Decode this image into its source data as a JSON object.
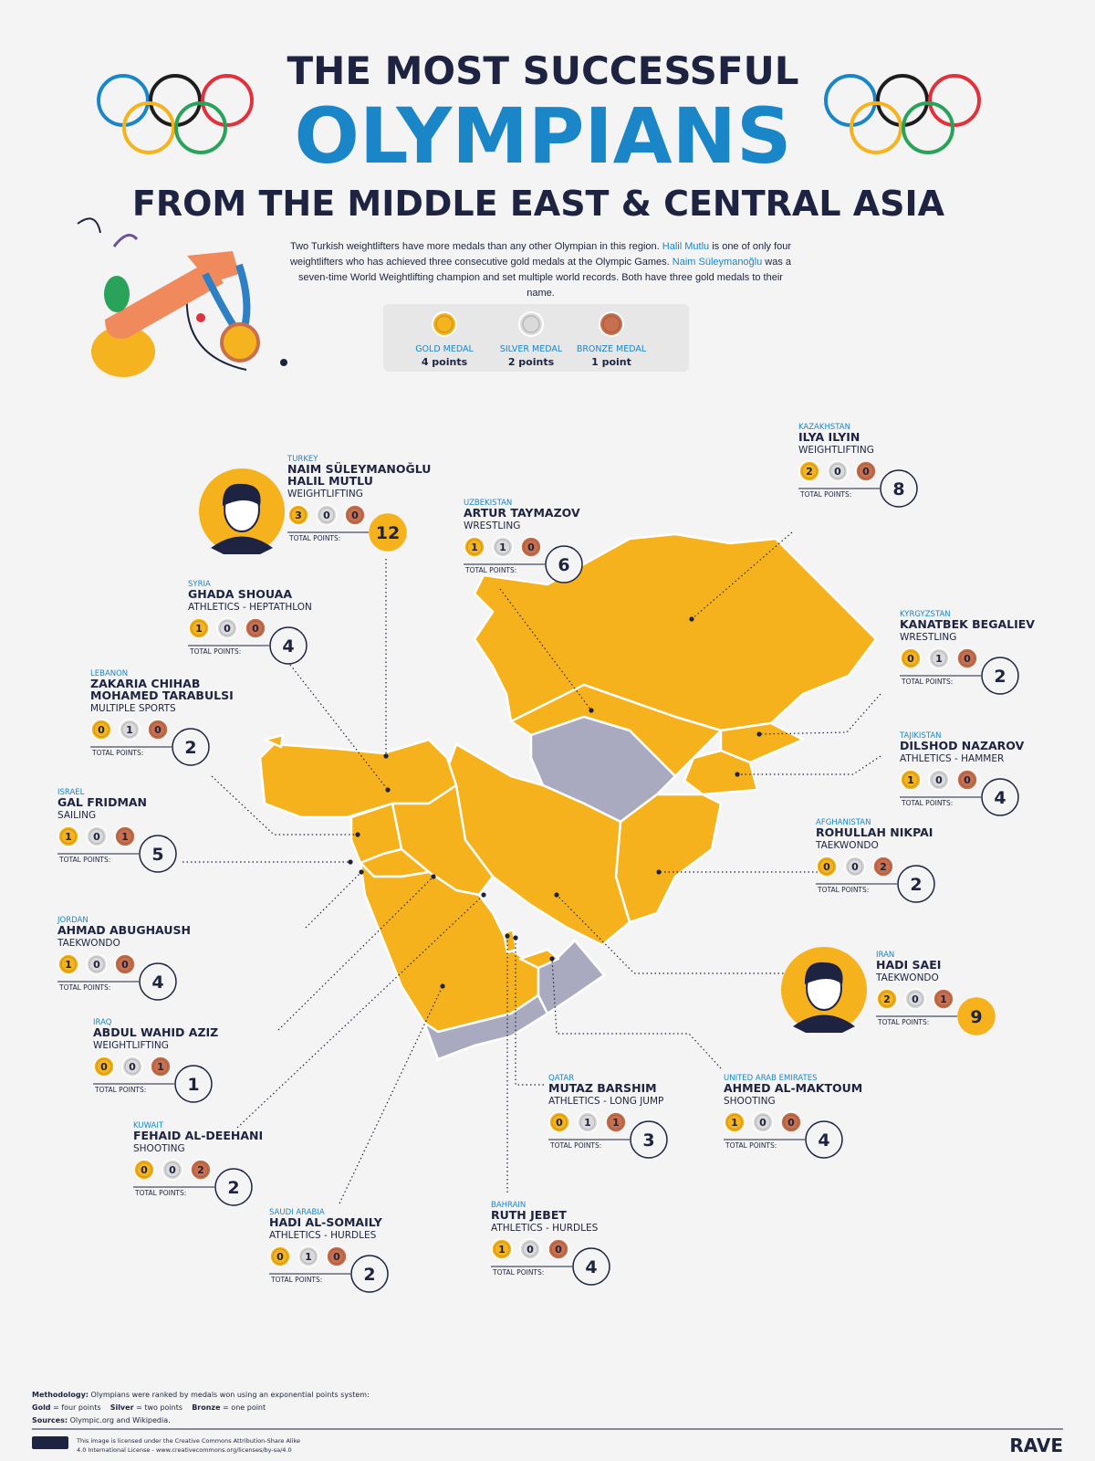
{
  "header": {
    "title_line1": "THE MOST SUCCESSFUL",
    "title_line2": "OLYMPIANS",
    "title_line3": "FROM THE MIDDLE EAST & CENTRAL ASIA"
  },
  "intro": [
    {
      "text": "Two Turkish weightlifters have more medals than any other Olympian in this region. ",
      "highlight": false
    },
    {
      "text": "Halil Mutlu",
      "highlight": true
    },
    {
      "text": " is one of only four weightlifters who has achieved three consecutive gold medals at the Olympic Games. ",
      "highlight": false
    },
    {
      "text": "Naim Süleymanoğlu",
      "highlight": true
    },
    {
      "text": " was a seven-time World Weightlifting champion and set multiple world records. Both have three gold medals to their name.",
      "highlight": false
    }
  ],
  "legend": [
    {
      "label": "GOLD MEDAL",
      "points": "4 points",
      "color": "#f4b31f"
    },
    {
      "label": "SILVER MEDAL",
      "points": "2 points",
      "color": "#dadada"
    },
    {
      "label": "BRONZE MEDAL",
      "points": "1 point",
      "color": "#c8704e"
    }
  ],
  "total_points_label": "TOTAL POINTS:",
  "olympians": [
    {
      "country": "TURKEY",
      "names": [
        "NAIM SÜLEYMANOĞLU",
        "HALIL MUTLU"
      ],
      "sport": "WEIGHTLIFTING",
      "medals": [
        3,
        0,
        0
      ],
      "total": 12,
      "featured": true
    },
    {
      "country": "UZBEKISTAN",
      "names": [
        "ARTUR TAYMAZOV"
      ],
      "sport": "WRESTLING",
      "medals": [
        1,
        1,
        0
      ],
      "total": 6,
      "featured": false
    },
    {
      "country": "KAZAKHSTAN",
      "names": [
        "ILYA ILYIN"
      ],
      "sport": "WEIGHTLIFTING",
      "medals": [
        2,
        0,
        0
      ],
      "total": 8,
      "featured": false
    },
    {
      "country": "SYRIA",
      "names": [
        "GHADA SHOUAA"
      ],
      "sport": "ATHLETICS - HEPTATHLON",
      "medals": [
        1,
        0,
        0
      ],
      "total": 4,
      "featured": false
    },
    {
      "country": "KYRGYZSTAN",
      "names": [
        "KANATBEK BEGALIEV"
      ],
      "sport": "WRESTLING",
      "medals": [
        0,
        1,
        0
      ],
      "total": 2,
      "featured": false
    },
    {
      "country": "LEBANON",
      "names": [
        "ZAKARIA CHIHAB",
        "MOHAMED TARABULSI"
      ],
      "sport": "MULTIPLE SPORTS",
      "medals": [
        0,
        1,
        0
      ],
      "total": 2,
      "featured": false
    },
    {
      "country": "TAJIKISTAN",
      "names": [
        "DILSHOD NAZAROV"
      ],
      "sport": "ATHLETICS - HAMMER",
      "medals": [
        1,
        0,
        0
      ],
      "total": 4,
      "featured": false
    },
    {
      "country": "ISRAEL",
      "names": [
        "GAL FRIDMAN"
      ],
      "sport": "SAILING",
      "medals": [
        1,
        0,
        1
      ],
      "total": 5,
      "featured": false
    },
    {
      "country": "AFGHANISTAN",
      "names": [
        "ROHULLAH NIKPAI"
      ],
      "sport": "TAEKWONDO",
      "medals": [
        0,
        0,
        2
      ],
      "total": 2,
      "featured": false
    },
    {
      "country": "JORDAN",
      "names": [
        "AHMAD ABUGHAUSH"
      ],
      "sport": "TAEKWONDO",
      "medals": [
        1,
        0,
        0
      ],
      "total": 4,
      "featured": false
    },
    {
      "country": "IRAN",
      "names": [
        "HADI SAEI"
      ],
      "sport": "TAEKWONDO",
      "medals": [
        2,
        0,
        1
      ],
      "total": 9,
      "featured": true
    },
    {
      "country": "IRAQ",
      "names": [
        "ABDUL WAHID AZIZ"
      ],
      "sport": "WEIGHTLIFTING",
      "medals": [
        0,
        0,
        1
      ],
      "total": 1,
      "featured": false
    },
    {
      "country": "KUWAIT",
      "names": [
        "FEHAID AL-DEEHANI"
      ],
      "sport": "SHOOTING",
      "medals": [
        0,
        0,
        2
      ],
      "total": 2,
      "featured": false
    },
    {
      "country": "QATAR",
      "names": [
        "MUTAZ BARSHIM"
      ],
      "sport": "ATHLETICS - LONG JUMP",
      "medals": [
        0,
        1,
        1
      ],
      "total": 3,
      "featured": false
    },
    {
      "country": "UNITED ARAB EMIRATES",
      "names": [
        "AHMED AL-MAKTOUM"
      ],
      "sport": "SHOOTING",
      "medals": [
        1,
        0,
        0
      ],
      "total": 4,
      "featured": false
    },
    {
      "country": "SAUDI ARABIA",
      "names": [
        "HADI AL-SOMAILY"
      ],
      "sport": "ATHLETICS - HURDLES",
      "medals": [
        0,
        1,
        0
      ],
      "total": 2,
      "featured": false
    },
    {
      "country": "BAHRAIN",
      "names": [
        "RUTH JEBET"
      ],
      "sport": "ATHLETICS - HURDLES",
      "medals": [
        1,
        0,
        0
      ],
      "total": 4,
      "featured": false
    }
  ],
  "footer": {
    "methodology": [
      {
        "text": "Methodology:",
        "bold": true
      },
      {
        "text": " Olympians were ranked by medals won using an exponential points system:",
        "bold": false
      }
    ],
    "points_line": [
      {
        "text": "Gold",
        "bold": true
      },
      {
        "text": " = four points    ",
        "bold": false
      },
      {
        "text": "Silver",
        "bold": true
      },
      {
        "text": " = two points    ",
        "bold": false
      },
      {
        "text": "Bronze",
        "bold": true
      },
      {
        "text": " = one point",
        "bold": false
      }
    ],
    "sources": [
      {
        "text": "Sources:",
        "bold": true
      },
      {
        "text": " Olympic.org and Wikipedia.",
        "bold": false
      }
    ],
    "license": [
      "This image is licensed under the Creative Commons Attribution-Share Alike",
      "4.0 International License - www.creativecommons.org/licenses/by-sa/4.0"
    ],
    "brand": "RAVE"
  }
}
